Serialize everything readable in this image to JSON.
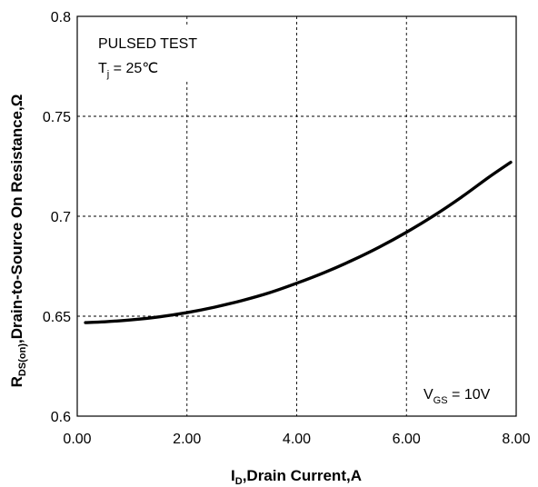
{
  "chart_data": {
    "type": "line",
    "title": "",
    "xlabel": {
      "main": "I",
      "sub": "D",
      "rest": ",Drain Current,A"
    },
    "ylabel": {
      "main": "R",
      "sub": "DS(on)",
      "rest": ",Drain-to-Source On Resistance,Ω"
    },
    "xlim": [
      0,
      8
    ],
    "ylim": [
      0.6,
      0.8
    ],
    "x_ticks": [
      0,
      2,
      4,
      6,
      8
    ],
    "x_tick_labels": [
      "0.00",
      "2.00",
      "4.00",
      "6.00",
      "8.00"
    ],
    "y_ticks": [
      0.6,
      0.65,
      0.7,
      0.75,
      0.8
    ],
    "y_tick_labels": [
      "0.6",
      "0.65",
      "0.7",
      "0.75",
      "0.8"
    ],
    "grid": true,
    "grid_style": "dashed",
    "series": [
      {
        "x": [
          0.15,
          0.5,
          1.0,
          1.5,
          2.0,
          2.5,
          3.0,
          3.5,
          4.0,
          4.5,
          5.0,
          5.5,
          6.0,
          6.5,
          7.0,
          7.5,
          7.9
        ],
        "y": [
          0.6468,
          0.6472,
          0.6482,
          0.6497,
          0.6518,
          0.6545,
          0.6578,
          0.6617,
          0.6665,
          0.6718,
          0.6778,
          0.6845,
          0.692,
          0.7003,
          0.7095,
          0.7195,
          0.727
        ],
        "color": "#000000"
      }
    ],
    "annotations": {
      "test_line1": "PULSED TEST",
      "temp_main": "T",
      "temp_sub": "j",
      "temp_rest": " = 25℃",
      "vgs_main": "V",
      "vgs_sub": "GS",
      "vgs_rest": " = 10V"
    }
  }
}
